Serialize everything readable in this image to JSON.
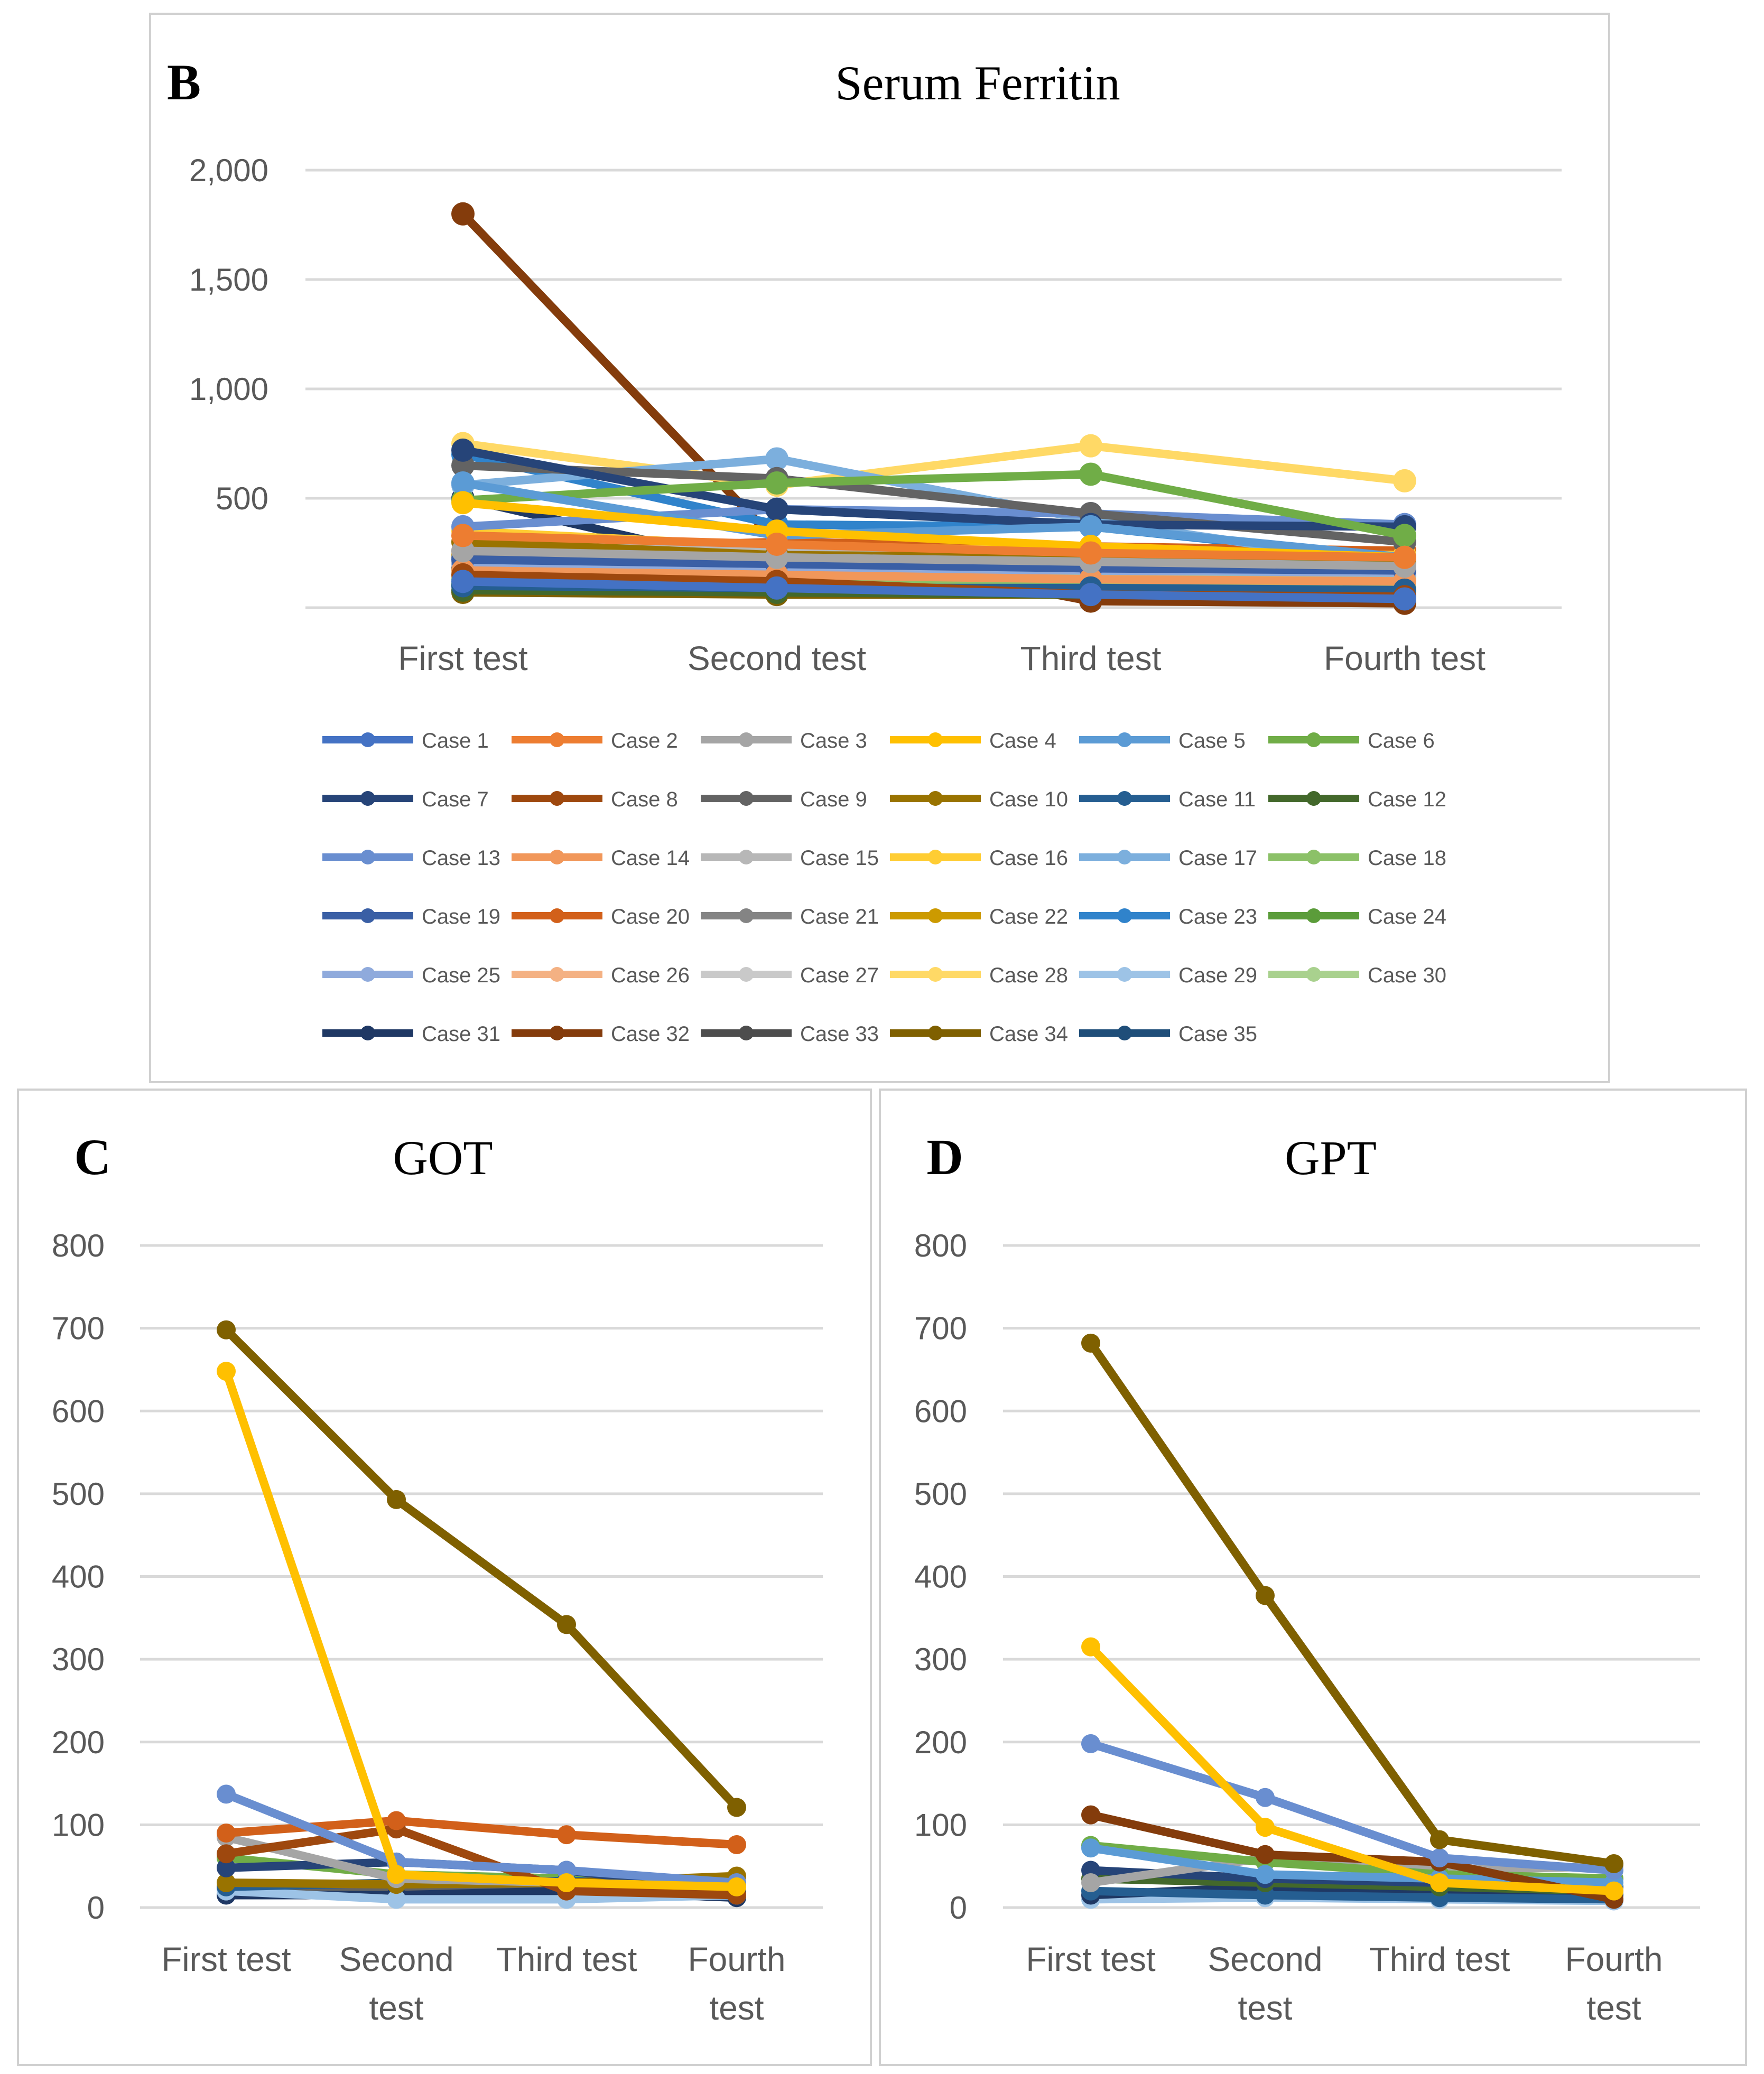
{
  "chart_data": [
    {
      "type": "line",
      "panel_letter": "B",
      "title": "Serum Ferritin",
      "categories": [
        "First test",
        "Second test",
        "Third test",
        "Fourth test"
      ],
      "yticks": [
        "2,000",
        "1,500",
        "1,000",
        "500"
      ],
      "ylim": [
        0,
        2000
      ],
      "legend_position": "bottom",
      "series": [
        {
          "name": "Case 1",
          "color": "#4472C4",
          "values": [
            120,
            90,
            60,
            40
          ]
        },
        {
          "name": "Case 2",
          "color": "#ED7D31",
          "values": [
            330,
            290,
            250,
            230
          ]
        },
        {
          "name": "Case 3",
          "color": "#A5A5A5",
          "values": [
            260,
            230,
            210,
            190
          ]
        },
        {
          "name": "Case 4",
          "color": "#FFC000",
          "values": [
            480,
            350,
            280,
            230
          ]
        },
        {
          "name": "Case 5",
          "color": "#5B9BD5",
          "values": [
            570,
            330,
            370,
            230
          ]
        },
        {
          "name": "Case 6",
          "color": "#70AD47",
          "values": [
            490,
            570,
            610,
            330
          ]
        },
        {
          "name": "Case 7",
          "color": "#264478",
          "values": [
            720,
            450,
            380,
            370
          ]
        },
        {
          "name": "Case 8",
          "color": "#9E480E",
          "values": [
            150,
            120,
            60,
            50
          ]
        },
        {
          "name": "Case 9",
          "color": "#636363",
          "values": [
            650,
            590,
            430,
            300
          ]
        },
        {
          "name": "Case 10",
          "color": "#997300",
          "values": [
            300,
            240,
            230,
            200
          ]
        },
        {
          "name": "Case 11",
          "color": "#255E91",
          "values": [
            100,
            90,
            90,
            80
          ]
        },
        {
          "name": "Case 12",
          "color": "#43682B",
          "values": [
            80,
            70,
            60,
            50
          ]
        },
        {
          "name": "Case 13",
          "color": "#698ED0",
          "values": [
            370,
            450,
            430,
            380
          ]
        },
        {
          "name": "Case 14",
          "color": "#F1975A",
          "values": [
            170,
            150,
            130,
            120
          ]
        },
        {
          "name": "Case 15",
          "color": "#B7B7B7",
          "values": [
            300,
            270,
            250,
            230
          ]
        },
        {
          "name": "Case 16",
          "color": "#FFCD33",
          "values": [
            350,
            280,
            260,
            240
          ]
        },
        {
          "name": "Case 17",
          "color": "#7CAFDD",
          "values": [
            560,
            680,
            400,
            190
          ]
        },
        {
          "name": "Case 18",
          "color": "#8CC168",
          "values": [
            130,
            110,
            100,
            90
          ]
        },
        {
          "name": "Case 19",
          "color": "#3A5FA5",
          "values": [
            220,
            200,
            180,
            170
          ]
        },
        {
          "name": "Case 20",
          "color": "#D2601A",
          "values": [
            260,
            300,
            280,
            260
          ]
        },
        {
          "name": "Case 21",
          "color": "#848484",
          "values": [
            230,
            210,
            200,
            190
          ]
        },
        {
          "name": "Case 22",
          "color": "#CC9A00",
          "values": [
            240,
            220,
            210,
            200
          ]
        },
        {
          "name": "Case 23",
          "color": "#3083CB",
          "values": [
            700,
            380,
            370,
            220
          ]
        },
        {
          "name": "Case 24",
          "color": "#5B9C3A",
          "values": [
            110,
            100,
            90,
            80
          ]
        },
        {
          "name": "Case 25",
          "color": "#8FAADC",
          "values": [
            200,
            180,
            170,
            160
          ]
        },
        {
          "name": "Case 26",
          "color": "#F4B183",
          "values": [
            150,
            140,
            130,
            120
          ]
        },
        {
          "name": "Case 27",
          "color": "#C9C9C9",
          "values": [
            210,
            190,
            180,
            170
          ]
        },
        {
          "name": "Case 28",
          "color": "#FFD966",
          "values": [
            750,
            560,
            740,
            580
          ]
        },
        {
          "name": "Case 29",
          "color": "#9DC3E6",
          "values": [
            230,
            140,
            130,
            120
          ]
        },
        {
          "name": "Case 30",
          "color": "#A9D18E",
          "values": [
            170,
            150,
            140,
            130
          ]
        },
        {
          "name": "Case 31",
          "color": "#1F3864",
          "values": [
            500,
            170,
            150,
            150
          ]
        },
        {
          "name": "Case 32",
          "color": "#843C0C",
          "values": [
            1800,
            300,
            30,
            20
          ]
        },
        {
          "name": "Case 33",
          "color": "#4D4D4D",
          "values": [
            180,
            160,
            150,
            140
          ]
        },
        {
          "name": "Case 34",
          "color": "#7F6000",
          "values": [
            70,
            60,
            60,
            50
          ]
        },
        {
          "name": "Case 35",
          "color": "#1F4E79",
          "values": [
            100,
            90,
            90,
            80
          ]
        }
      ]
    },
    {
      "type": "line",
      "panel_letter": "C",
      "title": "GOT",
      "categories": [
        [
          "First test"
        ],
        [
          "Second",
          "test"
        ],
        [
          "Third test"
        ],
        [
          "Fourth",
          "test"
        ]
      ],
      "yticks": [
        "800",
        "700",
        "600",
        "500",
        "400",
        "300",
        "200",
        "100",
        "0"
      ],
      "ylim": [
        0,
        800
      ],
      "series": [
        {
          "color": "#7F6000",
          "values": [
            698,
            493,
            342,
            121
          ]
        },
        {
          "color": "#FFC000",
          "values": [
            648,
            40,
            30,
            25
          ]
        },
        {
          "color": "#698ED0",
          "values": [
            137,
            55,
            45,
            30
          ]
        },
        {
          "color": "#D2601A",
          "values": [
            90,
            105,
            88,
            76
          ]
        },
        {
          "color": "#9E480E",
          "values": [
            65,
            95,
            20,
            15
          ]
        },
        {
          "color": "#A5A5A5",
          "values": [
            85,
            35,
            30,
            25
          ]
        },
        {
          "color": "#264478",
          "values": [
            48,
            55,
            45,
            20
          ]
        },
        {
          "color": "#997300",
          "values": [
            30,
            28,
            30,
            38
          ]
        },
        {
          "color": "#255E91",
          "values": [
            25,
            30,
            32,
            28
          ]
        },
        {
          "color": "#70AD47",
          "values": [
            60,
            40,
            35,
            30
          ]
        },
        {
          "color": "#9DC3E6",
          "values": [
            20,
            10,
            10,
            15
          ]
        },
        {
          "color": "#1F3864",
          "values": [
            15,
            15,
            20,
            12
          ]
        },
        {
          "color": "#636363",
          "values": [
            22,
            20,
            22,
            18
          ]
        }
      ]
    },
    {
      "type": "line",
      "panel_letter": "D",
      "title": "GPT",
      "categories": [
        [
          "First test"
        ],
        [
          "Second",
          "test"
        ],
        [
          "Third test"
        ],
        [
          "Fourth",
          "test"
        ]
      ],
      "yticks": [
        "800",
        "700",
        "600",
        "500",
        "400",
        "300",
        "200",
        "100",
        "0"
      ],
      "ylim": [
        0,
        800
      ],
      "series": [
        {
          "color": "#7F6000",
          "values": [
            682,
            377,
            82,
            53
          ]
        },
        {
          "color": "#FFC000",
          "values": [
            315,
            97,
            30,
            20
          ]
        },
        {
          "color": "#698ED0",
          "values": [
            198,
            133,
            60,
            45
          ]
        },
        {
          "color": "#843C0C",
          "values": [
            112,
            64,
            55,
            10
          ]
        },
        {
          "color": "#5B9BD5",
          "values": [
            72,
            40,
            35,
            30
          ]
        },
        {
          "color": "#70AD47",
          "values": [
            75,
            55,
            40,
            35
          ]
        },
        {
          "color": "#A5A5A5",
          "values": [
            30,
            60,
            45,
            50
          ]
        },
        {
          "color": "#264478",
          "values": [
            45,
            35,
            30,
            25
          ]
        },
        {
          "color": "#43682B",
          "values": [
            35,
            30,
            25,
            20
          ]
        },
        {
          "color": "#255E91",
          "values": [
            20,
            15,
            12,
            10
          ]
        },
        {
          "color": "#1F3864",
          "values": [
            15,
            25,
            20,
            15
          ]
        },
        {
          "color": "#9DC3E6",
          "values": [
            10,
            12,
            10,
            8
          ]
        }
      ]
    }
  ]
}
